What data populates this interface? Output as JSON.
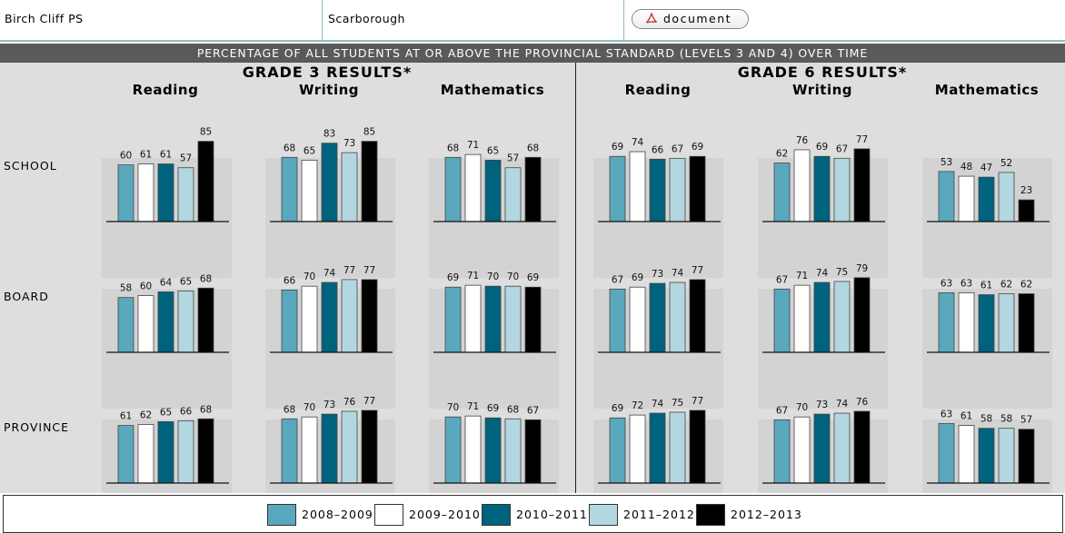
{
  "header": {
    "school": "Birch Cliff PS",
    "city": "Scarborough",
    "document_label": "document",
    "document_icon": "pdf-icon"
  },
  "banner": "PERCENTAGE OF ALL STUDENTS AT OR ABOVE THE PROVINCIAL STANDARD (LEVELS 3 AND 4) OVER TIME",
  "colors": {
    "panel": "#dedede",
    "tile": "#d3d3d3",
    "series": [
      "#5aa8bd",
      "#ffffff",
      "#00637d",
      "#b3d7e1",
      "#000000"
    ]
  },
  "chart_data": {
    "type": "bar",
    "series_names": [
      "2008–2009",
      "2009–2010",
      "2010–2011",
      "2011–2012",
      "2012–2013"
    ],
    "rows": [
      "SCHOOL",
      "BOARD",
      "PROVINCE"
    ],
    "ylim": [
      0,
      100
    ],
    "grades": [
      {
        "title": "GRADE 3 RESULTS*",
        "subjects": [
          {
            "name": "Reading",
            "values": [
              [
                60,
                61,
                61,
                57,
                85
              ],
              [
                58,
                60,
                64,
                65,
                68
              ],
              [
                61,
                62,
                65,
                66,
                68
              ]
            ]
          },
          {
            "name": "Writing",
            "values": [
              [
                68,
                65,
                83,
                73,
                85
              ],
              [
                66,
                70,
                74,
                77,
                77
              ],
              [
                68,
                70,
                73,
                76,
                77
              ]
            ]
          },
          {
            "name": "Mathematics",
            "values": [
              [
                68,
                71,
                65,
                57,
                68
              ],
              [
                69,
                71,
                70,
                70,
                69
              ],
              [
                70,
                71,
                69,
                68,
                67
              ]
            ]
          }
        ]
      },
      {
        "title": "GRADE 6 RESULTS*",
        "subjects": [
          {
            "name": "Reading",
            "values": [
              [
                69,
                74,
                66,
                67,
                69
              ],
              [
                67,
                69,
                73,
                74,
                77
              ],
              [
                69,
                72,
                74,
                75,
                77
              ]
            ]
          },
          {
            "name": "Writing",
            "values": [
              [
                62,
                76,
                69,
                67,
                77
              ],
              [
                67,
                71,
                74,
                75,
                79
              ],
              [
                67,
                70,
                73,
                74,
                76
              ]
            ]
          },
          {
            "name": "Mathematics",
            "values": [
              [
                53,
                48,
                47,
                52,
                23
              ],
              [
                63,
                63,
                61,
                62,
                62
              ],
              [
                63,
                61,
                58,
                58,
                57
              ]
            ]
          }
        ]
      }
    ]
  }
}
